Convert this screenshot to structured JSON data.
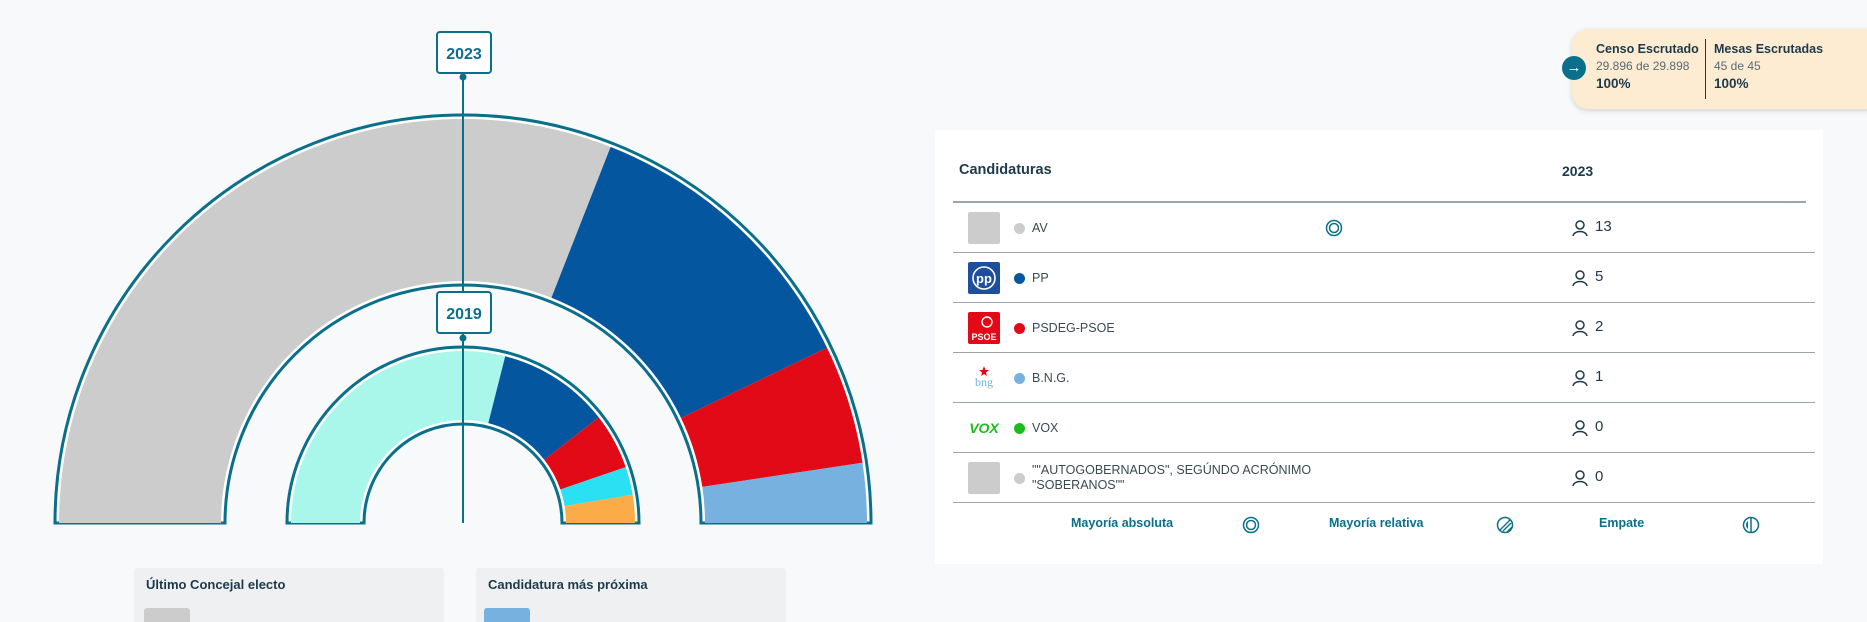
{
  "chart_data": [
    {
      "type": "parliament",
      "title": "2023",
      "total": 21,
      "series": [
        {
          "name": "AV",
          "value": 13,
          "color": "#cccccc"
        },
        {
          "name": "PP",
          "value": 5,
          "color": "#04569f"
        },
        {
          "name": "PSDEG-PSOE",
          "value": 2,
          "color": "#e30a18"
        },
        {
          "name": "B.N.G.",
          "value": 1,
          "color": "#76b1df"
        }
      ]
    },
    {
      "type": "parliament",
      "title": "2019",
      "series": [
        {
          "value": 11,
          "color": "#a8f7ea"
        },
        {
          "value": 4,
          "color": "#04569f"
        },
        {
          "value": 2,
          "color": "#e30a18"
        },
        {
          "value": 1,
          "color": "#2ae0f2"
        },
        {
          "value": 1,
          "color": "#fbab48"
        }
      ]
    }
  ],
  "cards": {
    "last_elected": {
      "title": "Último Concejal electo",
      "color": "#cccccc"
    },
    "closest": {
      "title": "Candidatura más próxima",
      "color": "#76b1df"
    }
  },
  "census": {
    "col1_title": "Censo Escrutado",
    "col1_sub": "29.896 de 29.898",
    "col1_pct": "100%",
    "col2_title": "Mesas Escrutadas",
    "col2_sub": "45 de 45",
    "col2_pct": "100%"
  },
  "results": {
    "header": "Candidaturas",
    "year": "2023",
    "rows": [
      {
        "name": "AV",
        "seats": "13",
        "color": "#cccccc",
        "logo": "placeholder",
        "majority": true
      },
      {
        "name": "PP",
        "seats": "5",
        "color": "#04569f",
        "logo": "pp-logo"
      },
      {
        "name": "PSDEG-PSOE",
        "seats": "2",
        "color": "#e30a18",
        "logo": "psoe-logo",
        "logo_text": "PSOE"
      },
      {
        "name": "B.N.G.",
        "seats": "1",
        "color": "#76b1df",
        "logo": "bng-logo",
        "logo_text": "bng"
      },
      {
        "name": "VOX",
        "seats": "0",
        "color": "#1dbc1d",
        "logo": "vox-logo",
        "logo_text": "VOX"
      },
      {
        "name": "\"\"AUTOGOBERNADOS\", SEGÚNDO ACRÓNIMO \"SOBERANOS\"\"",
        "seats": "0",
        "color": "#cccccc",
        "logo": "placeholder"
      }
    ]
  },
  "legend": {
    "absolute": "Mayoría absoluta",
    "relative": "Mayoría relativa",
    "tie": "Empate"
  },
  "colors": {
    "accent": "#0a6f8a"
  }
}
